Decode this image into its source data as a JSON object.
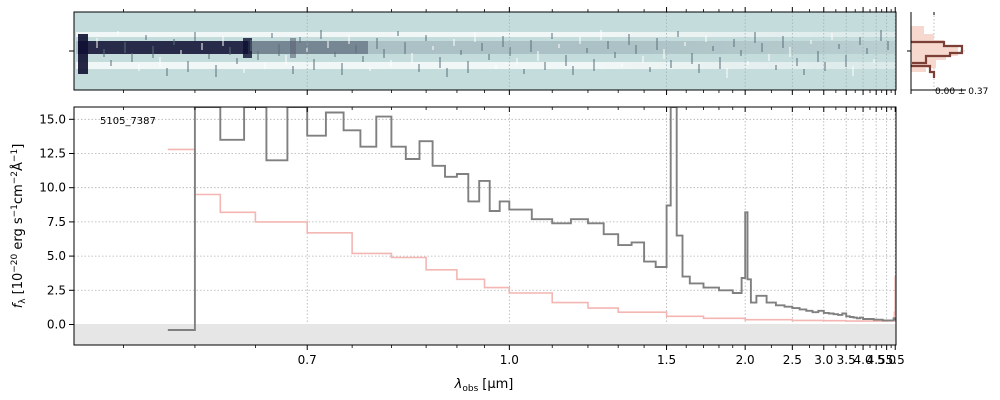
{
  "chart_data": {
    "type": "line",
    "object_label": "5105_7387",
    "xlabel": "λobs [μm]",
    "xlabel_parts": {
      "symbol": "λ",
      "subscript": "obs",
      "unit": "[μm]"
    },
    "ylabel": "fλ [10−20 ergs−1cm−2Å−1]",
    "ylabel_parts": {
      "symbol": "f",
      "sub": "λ",
      "pre": "[10",
      "e1": "−20",
      "t1": " erg s",
      "e2": "−1",
      "t2": "cm",
      "e3": "−2",
      "t3": "Å",
      "e4": "−1",
      "post": "]"
    },
    "x_scale": "reciprocal",
    "xlim": [
      0.52,
      5.55
    ],
    "ylim": [
      -1.5,
      15.9
    ],
    "x_tick_labels": [
      "0.7",
      "1.0",
      "1.5",
      "2.0",
      "2.5",
      "3.0",
      "3.5",
      "4.0",
      "4.5",
      "5.0",
      "5.5"
    ],
    "x_tick_values": [
      0.7,
      1.0,
      1.5,
      2.0,
      2.5,
      3.0,
      3.5,
      4.0,
      4.5,
      5.0,
      5.5
    ],
    "y_tick_labels": [
      "0.0",
      "2.5",
      "5.0",
      "7.5",
      "10.0",
      "12.5",
      "15.0"
    ],
    "y_tick_values": [
      0.0,
      2.5,
      5.0,
      7.5,
      10.0,
      12.5,
      15.0
    ],
    "grid": true,
    "series": [
      {
        "role": "flux",
        "color": "#808080",
        "x": [
          0.58,
          0.6,
          0.62,
          0.64,
          0.66,
          0.68,
          0.7,
          0.72,
          0.74,
          0.76,
          0.78,
          0.8,
          0.82,
          0.84,
          0.86,
          0.88,
          0.9,
          0.92,
          0.94,
          0.96,
          0.98,
          1.0,
          1.05,
          1.1,
          1.15,
          1.2,
          1.25,
          1.3,
          1.35,
          1.4,
          1.45,
          1.5,
          1.52,
          1.55,
          1.58,
          1.62,
          1.7,
          1.8,
          1.9,
          1.97,
          2.0,
          2.02,
          2.05,
          2.1,
          2.2,
          2.3,
          2.4,
          2.5,
          2.6,
          2.7,
          2.8,
          2.9,
          3.0,
          3.1,
          3.2,
          3.3,
          3.4,
          3.5,
          3.6,
          3.7,
          3.8,
          3.9,
          4.0,
          4.2,
          4.4,
          4.6,
          4.8,
          5.0,
          5.2,
          5.4,
          5.5
        ],
        "y": [
          -0.4,
          15.9,
          13.5,
          15.9,
          12.0,
          15.9,
          13.8,
          15.5,
          14.2,
          13.0,
          15.2,
          13.0,
          12.1,
          13.4,
          11.6,
          10.8,
          11.0,
          9.0,
          10.5,
          8.3,
          9.0,
          8.4,
          7.7,
          7.4,
          7.7,
          7.4,
          6.6,
          5.8,
          6.0,
          4.6,
          4.2,
          8.7,
          15.9,
          6.5,
          3.5,
          3.0,
          2.7,
          2.5,
          2.3,
          3.4,
          8.2,
          3.3,
          1.6,
          2.1,
          1.6,
          1.4,
          1.3,
          1.2,
          1.1,
          1.0,
          0.9,
          1.0,
          0.85,
          0.8,
          0.75,
          0.7,
          0.8,
          0.6,
          0.55,
          0.5,
          0.45,
          0.5,
          0.4,
          0.4,
          0.35,
          0.35,
          0.3,
          0.3,
          0.3,
          0.45,
          0.3
        ]
      },
      {
        "role": "uncertainty",
        "color": "#f4b6b2",
        "x": [
          0.58,
          0.6,
          0.62,
          0.65,
          0.7,
          0.75,
          0.8,
          0.85,
          0.9,
          0.95,
          1.0,
          1.1,
          1.2,
          1.3,
          1.5,
          1.7,
          2.0,
          2.5,
          3.0,
          3.5,
          4.0,
          4.5,
          5.0,
          5.3,
          5.45,
          5.5
        ],
        "y": [
          12.8,
          9.5,
          8.2,
          7.5,
          6.7,
          5.2,
          4.9,
          4.0,
          3.3,
          2.7,
          2.3,
          1.6,
          1.2,
          0.9,
          0.6,
          0.45,
          0.35,
          0.3,
          0.28,
          0.25,
          0.25,
          0.25,
          0.26,
          0.3,
          0.9,
          3.5
        ]
      }
    ],
    "inset_histogram": {
      "label": "0.00 ± 0.37",
      "colors": {
        "fill": "#f6d8cf",
        "line": "#7b3f35"
      }
    },
    "spectrum_2d": {
      "colors": {
        "background": "#c5dcdc",
        "trace_dark": "#0f1033",
        "trace_light": "#ffffff"
      }
    },
    "colors": {
      "grid": "#b0b0b0",
      "zero_band": "#e6e6e6"
    }
  }
}
